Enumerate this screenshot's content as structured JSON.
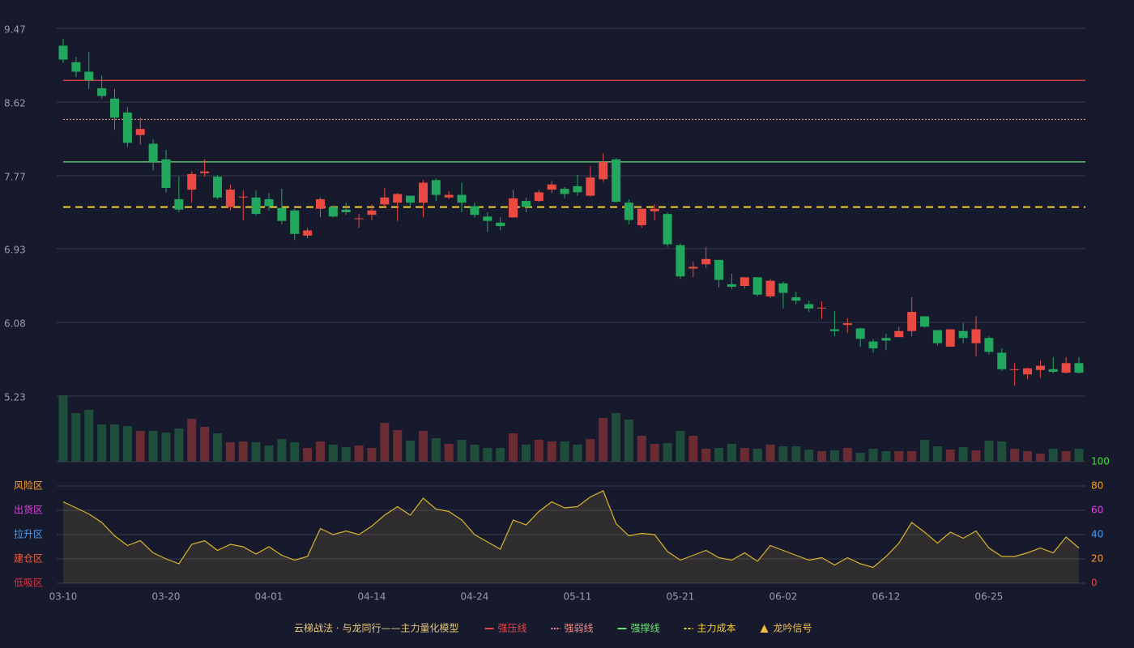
{
  "chart_data": [
    {
      "type": "candlestick",
      "categories": [
        "03-10",
        null,
        null,
        null,
        null,
        null,
        null,
        null,
        "03-20",
        null,
        null,
        null,
        null,
        null,
        null,
        null,
        "04-01",
        null,
        null,
        null,
        null,
        null,
        null,
        null,
        "04-14",
        null,
        null,
        null,
        null,
        null,
        null,
        null,
        "04-24",
        null,
        null,
        null,
        null,
        null,
        null,
        null,
        "05-11",
        null,
        null,
        null,
        null,
        null,
        null,
        null,
        "05-21",
        null,
        null,
        null,
        null,
        null,
        null,
        null,
        "06-02",
        null,
        null,
        null,
        null,
        null,
        null,
        null,
        "06-12",
        null,
        null,
        null,
        null,
        null,
        null,
        null,
        "06-25",
        null,
        null,
        null,
        null,
        null,
        null,
        null
      ],
      "open": [
        9.27,
        9.08,
        8.97,
        8.78,
        8.66,
        8.5,
        8.24,
        8.14,
        7.96,
        7.5,
        7.61,
        7.8,
        7.76,
        7.41,
        7.52,
        7.52,
        7.5,
        7.4,
        7.37,
        7.08,
        7.39,
        7.41,
        7.38,
        7.27,
        7.32,
        7.44,
        7.46,
        7.54,
        7.46,
        7.72,
        7.52,
        7.55,
        7.42,
        7.3,
        7.23,
        7.29,
        7.48,
        7.48,
        7.61,
        7.62,
        7.65,
        7.54,
        7.73,
        7.96,
        7.46,
        7.2,
        7.36,
        7.33,
        6.97,
        6.7,
        6.75,
        6.8,
        6.52,
        6.5,
        6.6,
        6.38,
        6.53,
        6.37,
        6.29,
        6.24,
        6.0,
        6.05,
        6.01,
        5.86,
        5.9,
        5.91,
        5.98,
        6.15,
        5.99,
        5.8,
        5.98,
        5.84,
        5.9,
        5.73,
        5.53,
        5.48,
        5.53,
        5.54,
        5.5,
        5.61
      ],
      "high": [
        9.35,
        9.14,
        9.2,
        8.93,
        8.77,
        8.56,
        8.44,
        8.19,
        8.07,
        7.76,
        7.82,
        7.96,
        7.78,
        7.67,
        7.6,
        7.6,
        7.57,
        7.62,
        7.39,
        7.17,
        7.52,
        7.43,
        7.46,
        7.33,
        7.44,
        7.63,
        7.57,
        7.54,
        7.72,
        7.74,
        7.59,
        7.69,
        7.46,
        7.35,
        7.29,
        7.61,
        7.52,
        7.61,
        7.71,
        7.64,
        7.78,
        7.88,
        8.03,
        7.97,
        7.5,
        7.39,
        7.44,
        7.35,
        6.99,
        6.78,
        6.95,
        6.8,
        6.64,
        6.6,
        6.6,
        6.58,
        6.55,
        6.43,
        6.33,
        6.32,
        6.21,
        6.13,
        6.02,
        5.89,
        5.95,
        6.03,
        6.37,
        6.15,
        5.99,
        6.0,
        6.07,
        6.15,
        5.92,
        5.78,
        5.61,
        5.56,
        5.64,
        5.68,
        5.68,
        5.68
      ],
      "low": [
        9.07,
        8.91,
        8.77,
        8.66,
        8.3,
        8.1,
        8.13,
        7.83,
        7.58,
        7.35,
        7.46,
        7.76,
        7.5,
        7.37,
        7.26,
        7.31,
        7.37,
        7.21,
        7.03,
        7.05,
        7.29,
        7.29,
        7.32,
        7.17,
        7.26,
        7.41,
        7.25,
        7.42,
        7.29,
        7.48,
        7.5,
        7.35,
        7.29,
        7.12,
        7.14,
        7.29,
        7.35,
        7.47,
        7.57,
        7.51,
        7.54,
        7.53,
        7.7,
        7.46,
        7.21,
        7.17,
        7.26,
        6.95,
        6.58,
        6.6,
        6.71,
        6.48,
        6.46,
        6.47,
        6.38,
        6.36,
        6.24,
        6.29,
        6.2,
        6.12,
        5.92,
        5.96,
        5.8,
        5.73,
        5.76,
        5.91,
        5.92,
        6.02,
        5.81,
        5.8,
        5.84,
        5.69,
        5.71,
        5.52,
        5.35,
        5.43,
        5.44,
        5.49,
        5.49,
        5.49
      ],
      "close": [
        9.11,
        8.97,
        8.87,
        8.69,
        8.44,
        8.15,
        8.31,
        7.93,
        7.63,
        7.38,
        7.79,
        7.82,
        7.52,
        7.61,
        7.53,
        7.33,
        7.42,
        7.25,
        7.1,
        7.14,
        7.5,
        7.3,
        7.35,
        7.28,
        7.37,
        7.52,
        7.56,
        7.46,
        7.69,
        7.55,
        7.55,
        7.46,
        7.32,
        7.25,
        7.19,
        7.51,
        7.41,
        7.58,
        7.67,
        7.56,
        7.58,
        7.75,
        7.93,
        7.47,
        7.26,
        7.39,
        7.39,
        6.98,
        6.61,
        6.72,
        6.81,
        6.57,
        6.49,
        6.6,
        6.4,
        6.56,
        6.42,
        6.33,
        6.24,
        6.25,
        5.98,
        6.07,
        5.89,
        5.78,
        5.87,
        5.98,
        6.2,
        6.03,
        5.84,
        6.0,
        5.9,
        6.0,
        5.74,
        5.54,
        5.54,
        5.55,
        5.58,
        5.51,
        5.61,
        5.5
      ],
      "up_color": "#eb4a43",
      "down_color": "#22a85e",
      "ylim": [
        5.23,
        9.47
      ],
      "yticks": [
        9.47,
        8.62,
        7.77,
        6.93,
        6.08,
        5.23
      ],
      "grid": true,
      "hlines": [
        {
          "name": "强压线",
          "value": 8.87,
          "color": "#e0474c",
          "style": "solid"
        },
        {
          "name": "强弱线",
          "value": 8.42,
          "color": "#f08a8a",
          "style": "dotted"
        },
        {
          "name": "强撑线",
          "value": 7.93,
          "color": "#6ee07a",
          "style": "solid"
        },
        {
          "name": "主力成本",
          "value": 7.41,
          "color": "#f2cc30",
          "style": "dashed"
        }
      ],
      "signal": {
        "name": "龙吟信号",
        "color": "#f2c040"
      },
      "legend_title": "云梯战法 · 与龙同行——主力量化模型",
      "legend_title_color": "#e8c878"
    },
    {
      "type": "bar",
      "values": [
        82,
        60,
        64,
        46,
        46,
        44,
        38,
        38,
        36,
        41,
        53,
        43,
        35,
        24,
        25,
        24,
        20,
        28,
        24,
        17,
        25,
        21,
        18,
        20,
        17,
        48,
        39,
        26,
        38,
        29,
        22,
        27,
        21,
        17,
        17,
        35,
        21,
        27,
        25,
        25,
        21,
        28,
        54,
        60,
        52,
        32,
        22,
        23,
        38,
        32,
        16,
        17,
        22,
        17,
        16,
        21,
        19,
        19,
        15,
        13,
        14,
        17,
        11,
        16,
        13,
        13,
        13,
        27,
        19,
        15,
        18,
        14,
        26,
        25,
        16,
        13,
        10,
        16,
        13,
        16
      ],
      "up_color": "#6b2b33",
      "down_color": "#1f4d3b"
    },
    {
      "type": "line",
      "values": [
        67,
        62,
        57,
        50,
        39,
        31,
        35,
        25,
        20,
        16,
        32,
        35,
        27,
        32,
        30,
        24,
        30,
        23,
        19,
        22,
        45,
        40,
        43,
        40,
        47,
        56,
        63,
        56,
        70,
        61,
        59,
        52,
        40,
        34,
        28,
        52,
        48,
        59,
        67,
        62,
        63,
        71,
        76,
        49,
        39,
        41,
        40,
        26,
        19,
        23,
        27,
        21,
        19,
        25,
        18,
        31,
        27,
        23,
        19,
        21,
        15,
        21,
        16,
        13,
        22,
        33,
        50,
        42,
        33,
        42,
        37,
        43,
        29,
        22,
        22,
        25,
        29,
        25,
        38,
        29
      ],
      "color": "#d8b42a",
      "fill": "rgba(140,115,60,0.22)",
      "ylim": [
        0,
        100
      ],
      "yticks": [
        0,
        20,
        40,
        60,
        80,
        100
      ],
      "ytick_colors": [
        "#e0474c",
        "#f29a3a",
        "#4a9ef0",
        "#e040e0",
        "#f2a030",
        "#40e040"
      ],
      "zones": [
        {
          "label": "风险区",
          "value": 80,
          "color": "#f2a030"
        },
        {
          "label": "出货区",
          "value": 60,
          "color": "#e040e0"
        },
        {
          "label": "拉升区",
          "value": 40,
          "color": "#4a9ef0"
        },
        {
          "label": "建仓区",
          "value": 20,
          "color": "#f05a3a"
        },
        {
          "label": "低吸区",
          "value": 0,
          "color": "#e03040"
        }
      ]
    }
  ]
}
